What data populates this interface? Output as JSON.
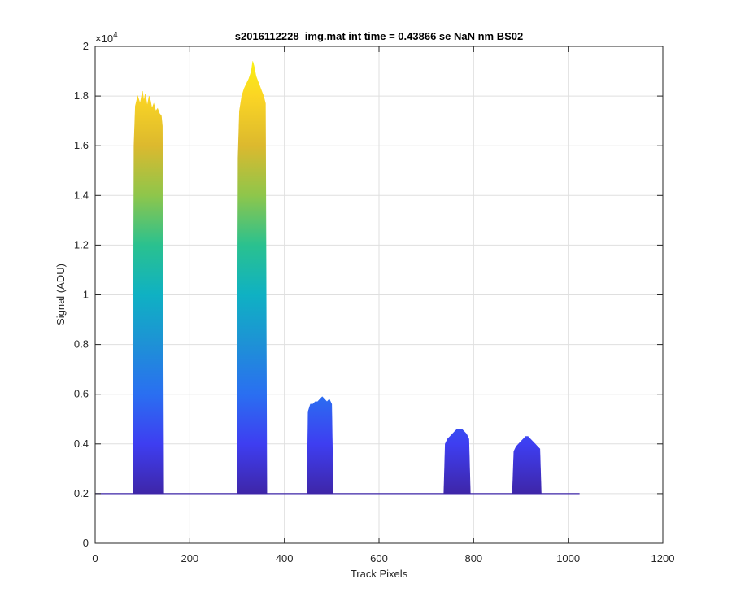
{
  "chart_data": {
    "type": "line",
    "title": "s2016112228_img.mat int time = 0.43866 se  NaN nm BS02",
    "xlabel": "Track Pixels",
    "ylabel": "Signal (ADU)",
    "y_exponent_label": "×10",
    "y_exponent_power": "4",
    "xlim": [
      0,
      1200
    ],
    "ylim": [
      0,
      2
    ],
    "y_scale_factor": 10000,
    "xticks": [
      0,
      200,
      400,
      600,
      800,
      1000,
      1200
    ],
    "yticks": [
      0,
      0.2,
      0.4,
      0.6,
      0.8,
      1,
      1.2,
      1.4,
      1.6,
      1.8,
      2
    ],
    "grid": true,
    "colormap": "parula",
    "colors": {
      "axis": "#262626",
      "grid": "#dfdfdf",
      "baseline": "#3e26a8",
      "parula_stops": [
        "#3e26a8",
        "#3e3ef1",
        "#2a6ff1",
        "#1e91d6",
        "#0fb1c3",
        "#2ac18f",
        "#8ec64b",
        "#dcb92e",
        "#fbd524",
        "#f9fb0e"
      ]
    },
    "baseline": 0.2,
    "x_extent": [
      0,
      1024
    ],
    "series": [
      {
        "x": [
          80,
          82,
          85,
          90,
          95,
          100,
          103,
          106,
          110,
          114,
          117,
          120,
          124,
          128,
          132,
          136,
          140,
          142,
          145
        ],
        "y": [
          0.2,
          1.6,
          1.76,
          1.8,
          1.77,
          1.82,
          1.78,
          1.81,
          1.76,
          1.8,
          1.78,
          1.75,
          1.77,
          1.74,
          1.75,
          1.73,
          1.72,
          1.68,
          0.2
        ]
      },
      {
        "x": [
          300,
          302,
          305,
          310,
          315,
          320,
          325,
          330,
          333,
          336,
          340,
          344,
          348,
          352,
          356,
          360,
          363
        ],
        "y": [
          0.2,
          1.55,
          1.74,
          1.8,
          1.83,
          1.85,
          1.87,
          1.9,
          1.94,
          1.92,
          1.88,
          1.86,
          1.84,
          1.82,
          1.8,
          1.77,
          0.2
        ]
      },
      {
        "x": [
          448,
          450,
          455,
          460,
          465,
          470,
          475,
          480,
          485,
          490,
          495,
          500,
          503
        ],
        "y": [
          0.2,
          0.53,
          0.56,
          0.56,
          0.57,
          0.57,
          0.58,
          0.59,
          0.58,
          0.57,
          0.58,
          0.56,
          0.2
        ]
      },
      {
        "x": [
          737,
          740,
          745,
          750,
          755,
          760,
          765,
          770,
          775,
          780,
          785,
          790,
          793
        ],
        "y": [
          0.2,
          0.4,
          0.42,
          0.43,
          0.44,
          0.45,
          0.46,
          0.46,
          0.46,
          0.45,
          0.44,
          0.42,
          0.2
        ]
      },
      {
        "x": [
          882,
          885,
          890,
          895,
          900,
          905,
          910,
          915,
          920,
          925,
          930,
          935,
          940,
          943
        ],
        "y": [
          0.2,
          0.37,
          0.39,
          0.4,
          0.41,
          0.42,
          0.43,
          0.43,
          0.42,
          0.41,
          0.4,
          0.39,
          0.38,
          0.2
        ]
      }
    ]
  }
}
